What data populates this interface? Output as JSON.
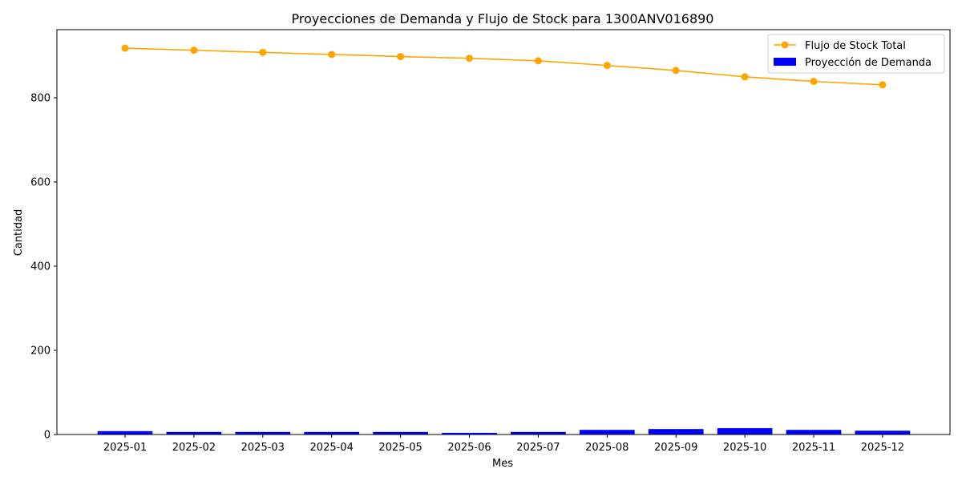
{
  "chart_data": {
    "type": "bar+line",
    "title": "Proyecciones de Demanda y Flujo de Stock para 1300ANV016890",
    "xlabel": "Mes",
    "ylabel": "Cantidad",
    "ylim": [
      0,
      962
    ],
    "yticks": [
      0,
      200,
      400,
      600,
      800
    ],
    "grid": false,
    "legend_position": "top-right",
    "categories": [
      "2025-01",
      "2025-02",
      "2025-03",
      "2025-04",
      "2025-05",
      "2025-06",
      "2025-07",
      "2025-08",
      "2025-09",
      "2025-10",
      "2025-11",
      "2025-12"
    ],
    "series": [
      {
        "name": "Flujo de Stock Total",
        "type": "line",
        "color": "#ffa500",
        "values": [
          918,
          913,
          908,
          903,
          898,
          894,
          888,
          877,
          865,
          850,
          839,
          831
        ]
      },
      {
        "name": "Proyección de Demanda",
        "type": "bar",
        "color": "#0000ff",
        "values": [
          8,
          6,
          6,
          6,
          6,
          4,
          6,
          11,
          13,
          15,
          11,
          9
        ]
      }
    ]
  }
}
